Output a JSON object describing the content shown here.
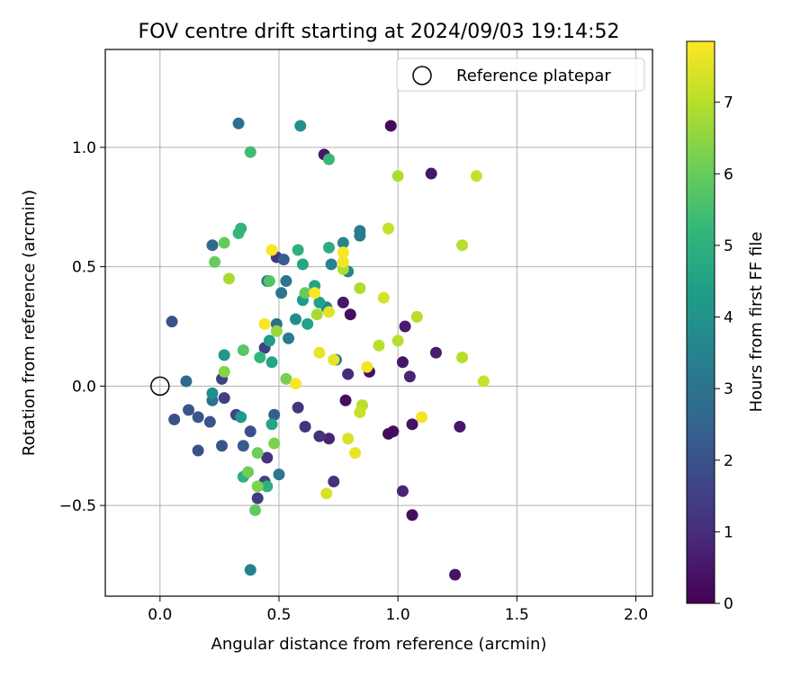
{
  "chart_data": {
    "type": "scatter",
    "title": "FOV centre drift starting at 2024/09/03 19:14:52",
    "xlabel": "Angular distance from reference (arcmin)",
    "ylabel": "Rotation from reference (arcmin)",
    "xlim": [
      -0.23,
      2.07
    ],
    "ylim": [
      -0.88,
      1.41
    ],
    "xticks": [
      0.0,
      0.5,
      1.0,
      1.5,
      2.0
    ],
    "xtick_labels": [
      "0.0",
      "0.5",
      "1.0",
      "1.5",
      "2.0"
    ],
    "yticks": [
      -0.5,
      0.0,
      0.5,
      1.0
    ],
    "ytick_labels": [
      "−0.5",
      "0.0",
      "0.5",
      "1.0"
    ],
    "grid": true,
    "legend": {
      "placement": "upper-right",
      "entries": [
        {
          "label": "Reference platepar",
          "marker": "hollow-circle",
          "x": 0.0,
          "y": 0.0
        }
      ]
    },
    "colorbar": {
      "label": "Hours from first FF file",
      "colormap": "viridis",
      "range": [
        0,
        7.85
      ],
      "ticks": [
        0,
        1,
        2,
        3,
        4,
        5,
        6,
        7
      ],
      "tick_labels": [
        "0",
        "1",
        "2",
        "3",
        "4",
        "5",
        "6",
        "7"
      ],
      "stops": [
        "#440154",
        "#482878",
        "#3e4989",
        "#31688e",
        "#26828e",
        "#1f9e89",
        "#35b779",
        "#6ece58",
        "#b5de2b",
        "#fde725"
      ]
    },
    "points": [
      {
        "x": 0.97,
        "y": 1.09,
        "c": 0.2
      },
      {
        "x": 0.69,
        "y": 0.97,
        "c": 0.5
      },
      {
        "x": 1.14,
        "y": 0.89,
        "c": 0.5
      },
      {
        "x": 0.77,
        "y": 0.35,
        "c": 0.5
      },
      {
        "x": 0.8,
        "y": 0.3,
        "c": 0.3
      },
      {
        "x": 1.03,
        "y": 0.25,
        "c": 0.6
      },
      {
        "x": 1.16,
        "y": 0.14,
        "c": 0.6
      },
      {
        "x": 1.02,
        "y": 0.1,
        "c": 0.5
      },
      {
        "x": 0.88,
        "y": 0.06,
        "c": 0.3
      },
      {
        "x": 1.05,
        "y": 0.04,
        "c": 0.8
      },
      {
        "x": 0.78,
        "y": -0.06,
        "c": 0.3
      },
      {
        "x": 0.98,
        "y": -0.19,
        "c": 0.3
      },
      {
        "x": 0.96,
        "y": -0.2,
        "c": 0.2
      },
      {
        "x": 1.06,
        "y": -0.16,
        "c": 0.4
      },
      {
        "x": 1.26,
        "y": -0.17,
        "c": 0.5
      },
      {
        "x": 0.71,
        "y": -0.22,
        "c": 0.8
      },
      {
        "x": 1.02,
        "y": -0.44,
        "c": 0.8
      },
      {
        "x": 1.06,
        "y": -0.54,
        "c": 0.3
      },
      {
        "x": 1.24,
        "y": -0.79,
        "c": 0.4
      },
      {
        "x": 0.79,
        "y": 0.05,
        "c": 1.0
      },
      {
        "x": 0.61,
        "y": -0.17,
        "c": 1.2
      },
      {
        "x": 0.67,
        "y": -0.21,
        "c": 1.1
      },
      {
        "x": 0.73,
        "y": -0.4,
        "c": 1.2
      },
      {
        "x": 0.58,
        "y": -0.09,
        "c": 1.3
      },
      {
        "x": 0.49,
        "y": 0.54,
        "c": 1.3
      },
      {
        "x": 0.44,
        "y": 0.16,
        "c": 1.5
      },
      {
        "x": 0.26,
        "y": 0.03,
        "c": 1.5
      },
      {
        "x": 0.27,
        "y": -0.05,
        "c": 1.5
      },
      {
        "x": 0.32,
        "y": -0.12,
        "c": 1.6
      },
      {
        "x": 0.45,
        "y": -0.3,
        "c": 1.2
      },
      {
        "x": 0.41,
        "y": -0.47,
        "c": 1.4
      },
      {
        "x": 0.44,
        "y": -0.4,
        "c": 1.6
      },
      {
        "x": 0.38,
        "y": -0.19,
        "c": 1.9
      },
      {
        "x": 0.05,
        "y": 0.27,
        "c": 2.0
      },
      {
        "x": 0.06,
        "y": -0.14,
        "c": 2.0
      },
      {
        "x": 0.12,
        "y": -0.1,
        "c": 2.1
      },
      {
        "x": 0.16,
        "y": -0.13,
        "c": 2.1
      },
      {
        "x": 0.16,
        "y": -0.27,
        "c": 2.0
      },
      {
        "x": 0.21,
        "y": -0.15,
        "c": 2.1
      },
      {
        "x": 0.26,
        "y": -0.25,
        "c": 2.1
      },
      {
        "x": 0.35,
        "y": -0.25,
        "c": 2.3
      },
      {
        "x": 0.48,
        "y": -0.12,
        "c": 2.4
      },
      {
        "x": 0.52,
        "y": 0.53,
        "c": 2.3
      },
      {
        "x": 0.22,
        "y": 0.59,
        "c": 2.7
      },
      {
        "x": 0.33,
        "y": 1.1,
        "c": 2.9
      },
      {
        "x": 0.49,
        "y": 0.26,
        "c": 2.9
      },
      {
        "x": 0.11,
        "y": 0.02,
        "c": 2.7
      },
      {
        "x": 0.22,
        "y": -0.06,
        "c": 2.9
      },
      {
        "x": 0.51,
        "y": 0.39,
        "c": 3.1
      },
      {
        "x": 0.53,
        "y": 0.44,
        "c": 3.1
      },
      {
        "x": 0.54,
        "y": 0.2,
        "c": 3.3
      },
      {
        "x": 0.5,
        "y": -0.37,
        "c": 3.1
      },
      {
        "x": 0.38,
        "y": -0.77,
        "c": 3.5
      },
      {
        "x": 0.45,
        "y": 0.44,
        "c": 3.4
      },
      {
        "x": 0.84,
        "y": 0.65,
        "c": 3.3
      },
      {
        "x": 0.84,
        "y": 0.63,
        "c": 3.2
      },
      {
        "x": 0.72,
        "y": 0.51,
        "c": 3.5
      },
      {
        "x": 0.77,
        "y": 0.6,
        "c": 3.6
      },
      {
        "x": 0.79,
        "y": 0.48,
        "c": 3.6
      },
      {
        "x": 0.7,
        "y": 0.33,
        "c": 3.5
      },
      {
        "x": 0.74,
        "y": 0.11,
        "c": 3.3
      },
      {
        "x": 0.57,
        "y": 0.28,
        "c": 3.8
      },
      {
        "x": 0.59,
        "y": 1.09,
        "c": 4.0
      },
      {
        "x": 0.27,
        "y": 0.13,
        "c": 4.2
      },
      {
        "x": 0.22,
        "y": -0.03,
        "c": 3.9
      },
      {
        "x": 0.34,
        "y": -0.13,
        "c": 4.2
      },
      {
        "x": 0.6,
        "y": 0.36,
        "c": 4.3
      },
      {
        "x": 0.62,
        "y": 0.26,
        "c": 4.5
      },
      {
        "x": 0.65,
        "y": 0.42,
        "c": 4.5
      },
      {
        "x": 0.67,
        "y": 0.35,
        "c": 4.5
      },
      {
        "x": 0.6,
        "y": 0.51,
        "c": 4.6
      },
      {
        "x": 0.46,
        "y": 0.19,
        "c": 4.4
      },
      {
        "x": 0.47,
        "y": 0.1,
        "c": 4.6
      },
      {
        "x": 0.47,
        "y": -0.16,
        "c": 4.6
      },
      {
        "x": 0.71,
        "y": 0.58,
        "c": 4.9
      },
      {
        "x": 0.58,
        "y": 0.57,
        "c": 5.0
      },
      {
        "x": 0.34,
        "y": 0.66,
        "c": 5.1
      },
      {
        "x": 0.33,
        "y": 0.64,
        "c": 5.2
      },
      {
        "x": 0.71,
        "y": 0.95,
        "c": 5.3
      },
      {
        "x": 0.38,
        "y": 0.98,
        "c": 5.4
      },
      {
        "x": 0.42,
        "y": 0.12,
        "c": 5.2
      },
      {
        "x": 0.35,
        "y": -0.38,
        "c": 5.0
      },
      {
        "x": 0.45,
        "y": -0.42,
        "c": 5.0
      },
      {
        "x": 0.46,
        "y": 0.44,
        "c": 5.7
      },
      {
        "x": 0.35,
        "y": 0.15,
        "c": 5.8
      },
      {
        "x": 0.23,
        "y": 0.52,
        "c": 6.0
      },
      {
        "x": 0.27,
        "y": 0.6,
        "c": 6.0
      },
      {
        "x": 0.61,
        "y": 0.39,
        "c": 6.0
      },
      {
        "x": 0.53,
        "y": 0.03,
        "c": 6.2
      },
      {
        "x": 0.37,
        "y": -0.36,
        "c": 6.1
      },
      {
        "x": 0.41,
        "y": -0.28,
        "c": 6.1
      },
      {
        "x": 0.48,
        "y": -0.24,
        "c": 6.3
      },
      {
        "x": 0.41,
        "y": -0.42,
        "c": 6.3
      },
      {
        "x": 0.4,
        "y": -0.52,
        "c": 5.9
      },
      {
        "x": 0.27,
        "y": 0.06,
        "c": 6.4
      },
      {
        "x": 0.49,
        "y": 0.23,
        "c": 6.6
      },
      {
        "x": 0.29,
        "y": 0.45,
        "c": 6.8
      },
      {
        "x": 0.66,
        "y": 0.3,
        "c": 6.8
      },
      {
        "x": 0.77,
        "y": 0.49,
        "c": 6.9
      },
      {
        "x": 0.84,
        "y": 0.41,
        "c": 6.9
      },
      {
        "x": 0.92,
        "y": 0.17,
        "c": 7.0
      },
      {
        "x": 1.0,
        "y": 0.19,
        "c": 7.0
      },
      {
        "x": 1.08,
        "y": 0.29,
        "c": 7.0
      },
      {
        "x": 1.0,
        "y": 0.88,
        "c": 6.9
      },
      {
        "x": 1.33,
        "y": 0.88,
        "c": 7.2
      },
      {
        "x": 1.27,
        "y": 0.59,
        "c": 7.0
      },
      {
        "x": 0.96,
        "y": 0.66,
        "c": 7.2
      },
      {
        "x": 1.27,
        "y": 0.12,
        "c": 7.0
      },
      {
        "x": 1.36,
        "y": 0.02,
        "c": 7.2
      },
      {
        "x": 0.85,
        "y": -0.08,
        "c": 7.0
      },
      {
        "x": 0.84,
        "y": -0.11,
        "c": 7.2
      },
      {
        "x": 0.79,
        "y": -0.22,
        "c": 7.4
      },
      {
        "x": 0.7,
        "y": -0.45,
        "c": 7.4
      },
      {
        "x": 0.94,
        "y": 0.37,
        "c": 7.4
      },
      {
        "x": 0.71,
        "y": 0.31,
        "c": 7.5
      },
      {
        "x": 0.82,
        "y": -0.28,
        "c": 7.6
      },
      {
        "x": 1.1,
        "y": -0.13,
        "c": 7.7
      },
      {
        "x": 0.87,
        "y": 0.08,
        "c": 7.7
      },
      {
        "x": 0.73,
        "y": 0.11,
        "c": 7.6
      },
      {
        "x": 0.57,
        "y": 0.01,
        "c": 7.8
      },
      {
        "x": 0.65,
        "y": 0.39,
        "c": 7.8
      },
      {
        "x": 0.67,
        "y": 0.14,
        "c": 7.6
      },
      {
        "x": 0.47,
        "y": 0.57,
        "c": 7.8
      },
      {
        "x": 0.44,
        "y": 0.26,
        "c": 7.8
      },
      {
        "x": 0.77,
        "y": 0.56,
        "c": 7.8
      },
      {
        "x": 0.77,
        "y": 0.52,
        "c": 7.7
      }
    ]
  }
}
